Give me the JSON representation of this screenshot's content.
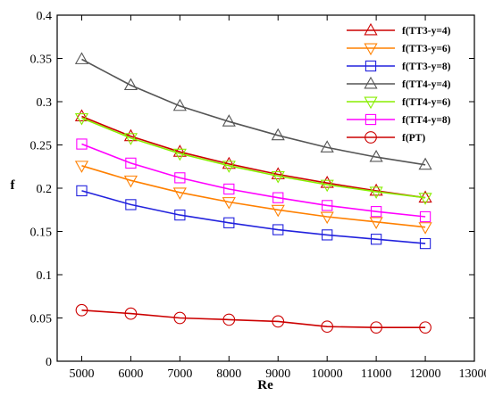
{
  "chart_data": {
    "type": "line",
    "xlabel": "Re",
    "ylabel": "f",
    "xlim": [
      4500,
      13000
    ],
    "ylim": [
      0,
      0.4
    ],
    "x_ticks": [
      "5000",
      "6000",
      "7000",
      "8000",
      "9000",
      "10000",
      "11000",
      "12000",
      "13000"
    ],
    "y_ticks": [
      "0",
      "0.05",
      "0.1",
      "0.15",
      "0.2",
      "0.25",
      "0.3",
      "0.35",
      "0.4"
    ],
    "grid": false,
    "legend_position": "top-right",
    "x": [
      5000,
      6000,
      7000,
      8000,
      9000,
      10000,
      11000,
      12000
    ],
    "series": [
      {
        "name": "f(TT3-y=4)",
        "color": "#cc0000",
        "marker": "triangle-up",
        "values": [
          0.283,
          0.26,
          0.242,
          0.228,
          0.216,
          0.206,
          0.197,
          0.189
        ]
      },
      {
        "name": "f(TT3-y=6)",
        "color": "#ff8000",
        "marker": "triangle-down",
        "values": [
          0.226,
          0.209,
          0.195,
          0.184,
          0.175,
          0.167,
          0.161,
          0.155
        ]
      },
      {
        "name": "f(TT3-y=8)",
        "color": "#2222dd",
        "marker": "square",
        "values": [
          0.197,
          0.181,
          0.169,
          0.16,
          0.152,
          0.146,
          0.141,
          0.136
        ]
      },
      {
        "name": "f(TT4-y=4)",
        "color": "#555555",
        "marker": "triangle-up",
        "values": [
          0.349,
          0.319,
          0.295,
          0.277,
          0.261,
          0.247,
          0.236,
          0.227
        ]
      },
      {
        "name": "f(TT4-y=6)",
        "color": "#88ee00",
        "marker": "triangle-down",
        "values": [
          0.281,
          0.258,
          0.24,
          0.226,
          0.214,
          0.204,
          0.196,
          0.189
        ]
      },
      {
        "name": "f(TT4-y=8)",
        "color": "#ff00ff",
        "marker": "square",
        "values": [
          0.251,
          0.229,
          0.212,
          0.199,
          0.189,
          0.18,
          0.173,
          0.167
        ]
      },
      {
        "name": "f(PT)",
        "color": "#cc0000",
        "marker": "circle",
        "values": [
          0.059,
          0.055,
          0.05,
          0.048,
          0.046,
          0.04,
          0.039,
          0.039
        ]
      }
    ]
  }
}
